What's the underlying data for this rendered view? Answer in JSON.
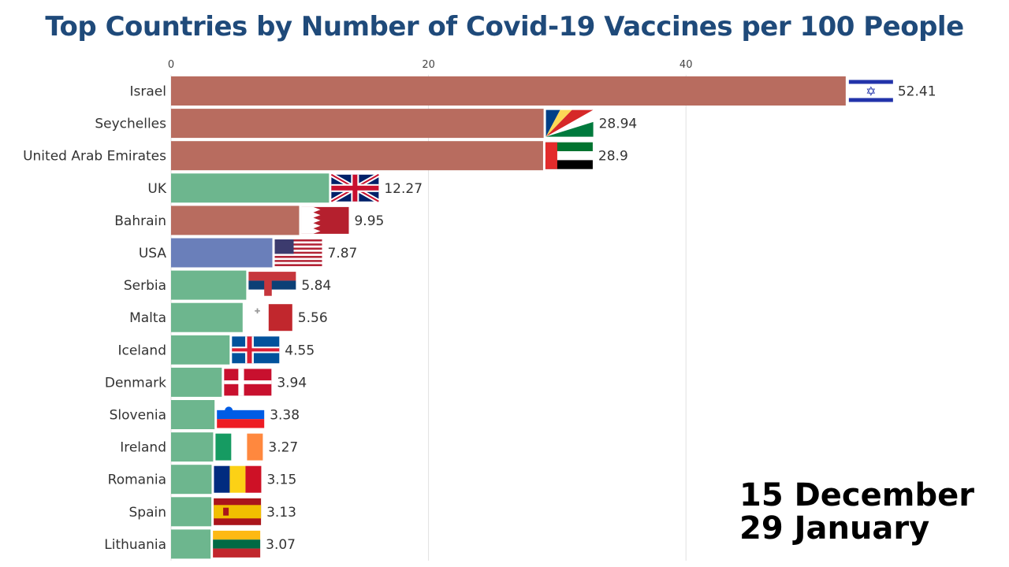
{
  "chart_data": {
    "type": "bar",
    "orientation": "horizontal",
    "title": "Top Countries by Number of Covid-19 Vaccines per 100 People",
    "xlim": [
      0,
      55
    ],
    "xticks": [
      0,
      20,
      40
    ],
    "grid": true,
    "categories": [
      "Israel",
      "Seychelles",
      "United Arab Emirates",
      "UK",
      "Bahrain",
      "USA",
      "Serbia",
      "Malta",
      "Iceland",
      "Denmark",
      "Slovenia",
      "Ireland",
      "Romania",
      "Spain",
      "Lithuania"
    ],
    "values": [
      52.41,
      28.94,
      28.9,
      12.27,
      9.95,
      7.87,
      5.84,
      5.56,
      4.55,
      3.94,
      3.38,
      3.27,
      3.15,
      3.13,
      3.07
    ],
    "value_labels": [
      "52.41",
      "28.94",
      "28.9",
      "12.27",
      "9.95",
      "7.87",
      "5.84",
      "5.56",
      "4.55",
      "3.94",
      "3.38",
      "3.27",
      "3.15",
      "3.13",
      "3.07"
    ],
    "bar_colors": [
      "#b86c5f",
      "#b86c5f",
      "#b86c5f",
      "#6db68e",
      "#b86c5f",
      "#6a7fba",
      "#6db68e",
      "#6db68e",
      "#6db68e",
      "#6db68e",
      "#6db68e",
      "#6db68e",
      "#6db68e",
      "#6db68e",
      "#6db68e"
    ],
    "flag_icons": [
      "israel-flag-icon",
      "seychelles-flag-icon",
      "uae-flag-icon",
      "uk-flag-icon",
      "bahrain-flag-icon",
      "usa-flag-icon",
      "serbia-flag-icon",
      "malta-flag-icon",
      "iceland-flag-icon",
      "denmark-flag-icon",
      "slovenia-flag-icon",
      "ireland-flag-icon",
      "romania-flag-icon",
      "spain-flag-icon",
      "lithuania-flag-icon"
    ]
  },
  "dates": {
    "start": "15 December",
    "end": "29 January"
  }
}
